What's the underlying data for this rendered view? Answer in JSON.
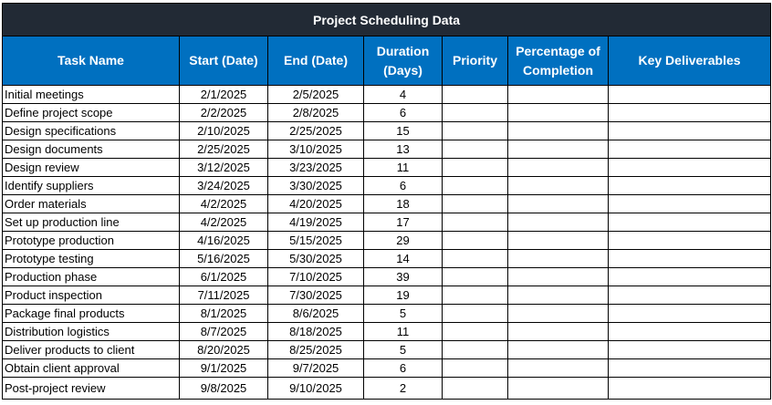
{
  "title": "Project Scheduling Data",
  "headers": {
    "task": "Task Name",
    "start": "Start  (Date)",
    "end": "End  (Date)",
    "duration": "Duration (Days)",
    "priority": "Priority",
    "completion": "Percentage of Completion",
    "deliverables": "Key Deliverables"
  },
  "rows": [
    {
      "task": "Initial meetings",
      "start": "2/1/2025",
      "end": "2/5/2025",
      "duration": "4"
    },
    {
      "task": "Define project scope",
      "start": "2/2/2025",
      "end": "2/8/2025",
      "duration": "6"
    },
    {
      "task": "Design specifications",
      "start": "2/10/2025",
      "end": "2/25/2025",
      "duration": "15"
    },
    {
      "task": "Design documents",
      "start": "2/25/2025",
      "end": "3/10/2025",
      "duration": "13"
    },
    {
      "task": "Design review",
      "start": "3/12/2025",
      "end": "3/23/2025",
      "duration": "11"
    },
    {
      "task": "Identify suppliers",
      "start": "3/24/2025",
      "end": "3/30/2025",
      "duration": "6"
    },
    {
      "task": "Order materials",
      "start": "4/2/2025",
      "end": "4/20/2025",
      "duration": "18"
    },
    {
      "task": "Set up production line",
      "start": "4/2/2025",
      "end": "4/19/2025",
      "duration": "17"
    },
    {
      "task": "Prototype production",
      "start": "4/16/2025",
      "end": "5/15/2025",
      "duration": "29"
    },
    {
      "task": "Prototype testing",
      "start": "5/16/2025",
      "end": "5/30/2025",
      "duration": "14"
    },
    {
      "task": "Production phase",
      "start": "6/1/2025",
      "end": "7/10/2025",
      "duration": "39"
    },
    {
      "task": "Product inspection",
      "start": "7/11/2025",
      "end": "7/30/2025",
      "duration": "19"
    },
    {
      "task": "Package final products",
      "start": "8/1/2025",
      "end": "8/6/2025",
      "duration": "5"
    },
    {
      "task": "Distribution logistics",
      "start": "8/7/2025",
      "end": "8/18/2025",
      "duration": "11"
    },
    {
      "task": "Deliver products to client",
      "start": "8/20/2025",
      "end": "8/25/2025",
      "duration": "5"
    },
    {
      "task": "Obtain client approval",
      "start": "9/1/2025",
      "end": "9/7/2025",
      "duration": "6"
    },
    {
      "task": "Post-project review",
      "start": "9/8/2025",
      "end": "9/10/2025",
      "duration": "2"
    }
  ],
  "colors": {
    "title_bg": "#222a35",
    "header_bg": "#0070c0",
    "header_text": "#ffffff"
  }
}
